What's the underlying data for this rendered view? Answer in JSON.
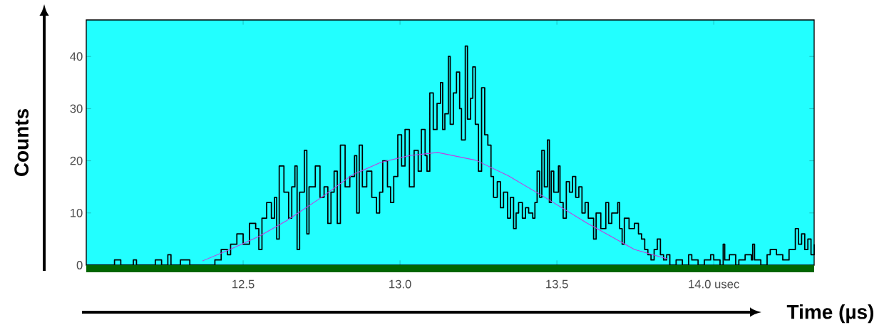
{
  "chart_data": {
    "type": "step",
    "xlabel": "Time (µs)",
    "ylabel": "Counts",
    "xlim": [
      12.0,
      14.32
    ],
    "ylim": [
      0,
      47
    ],
    "xticks": [
      12.5,
      {
        "value": 13,
        "label": "13.0"
      },
      13.5,
      {
        "value": 14,
        "label": "14.0 usec"
      }
    ],
    "yticks": [
      0,
      10,
      20,
      30,
      40
    ],
    "series": [
      {
        "color": "#000000",
        "x": [
          12.0,
          12.09,
          12.11,
          12.15,
          12.16,
          12.22,
          12.24,
          12.26,
          12.27,
          12.3,
          12.33,
          12.41,
          12.43,
          12.45,
          12.46,
          12.48,
          12.5,
          12.52,
          12.54,
          12.55,
          12.56,
          12.575,
          12.59,
          12.6,
          12.607,
          12.615,
          12.63,
          12.645,
          12.655,
          12.665,
          12.672,
          12.68,
          12.695,
          12.703,
          12.71,
          12.73,
          12.745,
          12.758,
          12.77,
          12.78,
          12.79,
          12.8,
          12.81,
          12.825,
          12.84,
          12.855,
          12.862,
          12.87,
          12.88,
          12.894,
          12.91,
          12.925,
          12.935,
          12.945,
          12.96,
          12.97,
          12.98,
          12.993,
          13.005,
          13.016,
          13.03,
          13.045,
          13.058,
          13.068,
          13.08,
          13.086,
          13.095,
          13.106,
          13.118,
          13.129,
          13.136,
          13.143,
          13.154,
          13.16,
          13.17,
          13.18,
          13.19,
          13.196,
          13.208,
          13.215,
          13.225,
          13.232,
          13.24,
          13.25,
          13.26,
          13.27,
          13.28,
          13.29,
          13.298,
          13.31,
          13.32,
          13.33,
          13.343,
          13.352,
          13.362,
          13.37,
          13.378,
          13.39,
          13.4,
          13.41,
          13.423,
          13.43,
          13.437,
          13.445,
          13.452,
          13.46,
          13.47,
          13.476,
          13.482,
          13.49,
          13.505,
          13.51,
          13.52,
          13.53,
          13.54,
          13.55,
          13.56,
          13.57,
          13.58,
          13.59,
          13.6,
          13.617,
          13.625,
          13.64,
          13.656,
          13.665,
          13.675,
          13.694,
          13.7,
          13.708,
          13.715,
          13.73,
          13.747,
          13.76,
          13.77,
          13.78,
          13.79,
          13.8,
          13.81,
          13.82,
          13.83,
          13.84,
          13.85,
          13.86,
          13.88,
          13.9,
          13.92,
          13.93,
          13.95,
          13.97,
          13.99,
          14.0,
          14.02,
          14.03,
          14.035,
          14.05,
          14.07,
          14.08,
          14.1,
          14.12,
          14.124,
          14.13,
          14.15,
          14.17,
          14.18,
          14.2,
          14.22,
          14.24,
          14.26,
          14.27,
          14.28,
          14.29,
          14.3,
          14.31,
          14.32
        ],
        "values": [
          0,
          1,
          0,
          1,
          0,
          1,
          0,
          2,
          0,
          1,
          0,
          1,
          3,
          2,
          4,
          6,
          4,
          8,
          7,
          3,
          9,
          12,
          9,
          13,
          5,
          19,
          14,
          9,
          15,
          19,
          3,
          14,
          22,
          6,
          15,
          19,
          13,
          15,
          8,
          14,
          18,
          8,
          23,
          15,
          17,
          21,
          10,
          23,
          15,
          18,
          13,
          10,
          14,
          20,
          15,
          12,
          17,
          25,
          19,
          26,
          15,
          22,
          18,
          26,
          21,
          18,
          33,
          26,
          31,
          35,
          26,
          29,
          40,
          27,
          33,
          37,
          30,
          24,
          42,
          28,
          32,
          38,
          27,
          18,
          34,
          25,
          23,
          17,
          13,
          16,
          11,
          14,
          9,
          13,
          7,
          10,
          12,
          9,
          11,
          10,
          9,
          12,
          18,
          13,
          22,
          15,
          24,
          12,
          18,
          14,
          19,
          12,
          9,
          16,
          14,
          17,
          13,
          15,
          10,
          12,
          9,
          5,
          10,
          7,
          12,
          8,
          10,
          12,
          7,
          4,
          9,
          7,
          8,
          6,
          5,
          3,
          2,
          1,
          3,
          5,
          2,
          1,
          2,
          0,
          1,
          0,
          2,
          1,
          0,
          1,
          2,
          1,
          0,
          4,
          1,
          2,
          0,
          1,
          2,
          1,
          4,
          1,
          0,
          2,
          3,
          2,
          1,
          3,
          7,
          4,
          6,
          3,
          5,
          2,
          4
        ]
      },
      {
        "type": "line",
        "color": "#c040e0",
        "x": [
          12.37,
          12.45,
          12.55,
          12.638,
          12.75,
          12.848,
          12.939,
          13.03,
          13.12,
          13.242,
          13.346,
          13.459,
          13.595,
          13.67,
          13.747,
          13.853
        ],
        "values": [
          0.8,
          2.8,
          5.5,
          8.5,
          13,
          17.3,
          19.7,
          21,
          21.6,
          20.1,
          17.1,
          13.1,
          8.1,
          5.6,
          3,
          1.2
        ]
      }
    ]
  }
}
